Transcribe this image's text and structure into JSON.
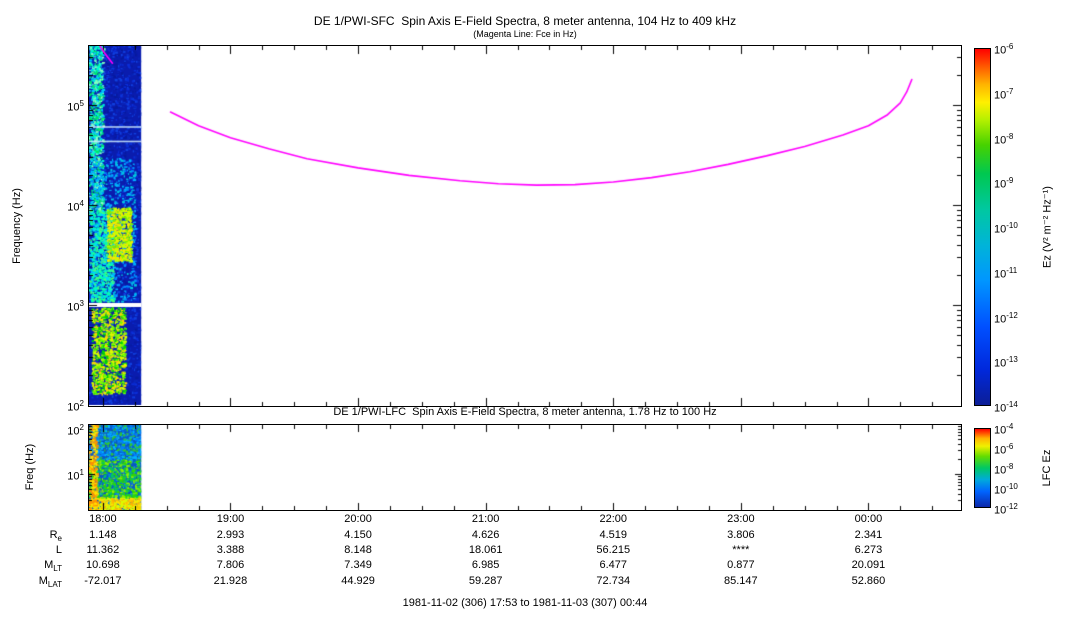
{
  "footer": "1981-11-02 (306) 17:53 to 1981-11-03 (307) 00:44",
  "ephemeris": {
    "rows": [
      {
        "base": "R",
        "sub": "e",
        "values": [
          "1.148",
          "2.993",
          "4.150",
          "4.626",
          "4.519",
          "3.806",
          "2.341"
        ]
      },
      {
        "base": "L",
        "sub": "",
        "values": [
          "11.362",
          "3.388",
          "8.148",
          "18.061",
          "56.215",
          "****",
          "6.273"
        ]
      },
      {
        "base": "M",
        "sub": "LT",
        "values": [
          "10.698",
          "7.806",
          "7.349",
          "6.985",
          "6.477",
          "0.877",
          "20.091"
        ]
      },
      {
        "base": "M",
        "sub": "LAT",
        "values": [
          "-72.017",
          "21.928",
          "44.929",
          "59.287",
          "72.734",
          "85.147",
          "52.860"
        ]
      }
    ]
  },
  "chart_data": [
    {
      "type": "heatmap",
      "instrument": "SFC",
      "title": "DE 1/PWI-SFC  Spin Axis E-Field Spectra, 8 meter antenna, 104 Hz to 409 kHz",
      "subtitle": "(Magenta Line: Fce in Hz)",
      "ylabel": "Frequency (Hz)",
      "yscale": "log",
      "ylim_hz": [
        104,
        409000
      ],
      "yticks": [
        {
          "hz": 100000,
          "base": "10",
          "exp": "5"
        },
        {
          "hz": 10000,
          "base": "10",
          "exp": "4"
        },
        {
          "hz": 1000,
          "base": "10",
          "exp": "3"
        },
        {
          "hz": 100,
          "base": "10",
          "exp": "2"
        }
      ],
      "time_range_hours": [
        17.8833,
        24.7333
      ],
      "xticks": [
        {
          "hour": 18,
          "label": "18:00"
        },
        {
          "hour": 19,
          "label": "19:00"
        },
        {
          "hour": 20,
          "label": "20:00"
        },
        {
          "hour": 21,
          "label": "21:00"
        },
        {
          "hour": 22,
          "label": "22:00"
        },
        {
          "hour": 23,
          "label": "23:00"
        },
        {
          "hour": 24,
          "label": "00:00"
        }
      ],
      "colorbar": {
        "label": "Ez (V² m⁻² Hz⁻¹)",
        "scale": "log",
        "range": [
          1e-14,
          1e-06
        ],
        "tick_base": "10",
        "tick_exps": [
          "-6",
          "-7",
          "-8",
          "-9",
          "-10",
          "-11",
          "-12",
          "-13",
          "-14"
        ],
        "stops": [
          [
            0,
            "#ff0000"
          ],
          [
            0.05,
            "#ff5a00"
          ],
          [
            0.1,
            "#ffb400"
          ],
          [
            0.15,
            "#fff000"
          ],
          [
            0.2,
            "#b4f000"
          ],
          [
            0.27,
            "#46d200"
          ],
          [
            0.35,
            "#00c850"
          ],
          [
            0.45,
            "#00c8a0"
          ],
          [
            0.55,
            "#00b4d8"
          ],
          [
            0.65,
            "#0096ff"
          ],
          [
            0.78,
            "#0050ff"
          ],
          [
            0.9,
            "#0028dc"
          ],
          [
            1,
            "#0c1e96"
          ]
        ]
      },
      "spectrogram": {
        "seed": 7,
        "time_extent_hours": [
          17.8833,
          18.3
        ],
        "freq_extent_hz": [
          100,
          409000
        ],
        "base_color": "#0a1cae",
        "features": [
          {
            "name": "noise-speckle",
            "t": [
              17.8833,
              18.3
            ],
            "f": [
              100,
              409000
            ],
            "colors": [
              "#0b2ed8",
              "#0a24b8",
              "#071a9e",
              "#1040e0"
            ],
            "density": 2600
          },
          {
            "name": "upper-bright-column",
            "t": [
              17.89,
              18.0
            ],
            "f": [
              8000,
              400000
            ],
            "colors": [
              "#00e868",
              "#00ffd0",
              "#8cffc0",
              "#00c8ff"
            ],
            "density": 900
          },
          {
            "name": "mid-cyan-wash",
            "t": [
              17.9,
              18.25
            ],
            "f": [
              1100,
              30000
            ],
            "colors": [
              "#0090ff",
              "#00c8e0",
              "#00b4ff"
            ],
            "density": 700
          },
          {
            "name": "cyan-column",
            "t": [
              17.89,
              18.08
            ],
            "f": [
              1100,
              9000
            ],
            "colors": [
              "#00d8ff",
              "#00ffb4",
              "#40ff80"
            ],
            "density": 700
          },
          {
            "name": "yellow-green-blob",
            "t": [
              18.03,
              18.22
            ],
            "f": [
              2800,
              9500
            ],
            "colors": [
              "#c8ff00",
              "#7cf000",
              "#ffe400"
            ],
            "density": 650
          },
          {
            "name": "low-freq-intense",
            "t": [
              17.91,
              18.17
            ],
            "f": [
              130,
              950
            ],
            "colors": [
              "#00d800",
              "#70ff00",
              "#d8ff00",
              "#ffd800"
            ],
            "density": 1100
          }
        ],
        "white_lines_hz": [
          1000
        ],
        "light_lines_hz": [
          43000,
          60000
        ]
      },
      "fce_line": {
        "color": "#ff00ff",
        "legend": "Fce in Hz",
        "segments": [
          [
            [
              17.955,
              430000
            ],
            [
              18.01,
              335000
            ],
            [
              18.075,
              262000
            ]
          ],
          [
            [
              18.53,
              85000
            ],
            [
              18.75,
              62000
            ],
            [
              19.0,
              47000
            ],
            [
              19.3,
              36500
            ],
            [
              19.6,
              29000
            ],
            [
              20.0,
              23500
            ],
            [
              20.4,
              19800
            ],
            [
              20.8,
              17500
            ],
            [
              21.1,
              16300
            ],
            [
              21.4,
              15800
            ],
            [
              21.7,
              16000
            ],
            [
              22.0,
              17000
            ],
            [
              22.3,
              18800
            ],
            [
              22.6,
              21500
            ],
            [
              22.9,
              25500
            ],
            [
              23.2,
              31000
            ],
            [
              23.5,
              38500
            ],
            [
              23.8,
              50000
            ],
            [
              24.0,
              62000
            ],
            [
              24.15,
              80000
            ],
            [
              24.25,
              105000
            ],
            [
              24.3,
              135000
            ],
            [
              24.34,
              180000
            ]
          ]
        ]
      }
    },
    {
      "type": "heatmap",
      "instrument": "LFC",
      "title": "DE 1/PWI-LFC  Spin Axis E-Field Spectra, 8 meter antenna, 1.78 Hz to 100 Hz",
      "ylabel": "Freq (Hz)",
      "yscale": "log",
      "ylim_hz": [
        1.78,
        100
      ],
      "yticks": [
        {
          "hz": 100,
          "base": "10",
          "exp": "2"
        },
        {
          "hz": 10,
          "base": "10",
          "exp": "1"
        }
      ],
      "colorbar": {
        "label": "LFC Ez",
        "scale": "log",
        "range": [
          1e-12,
          0.0001
        ],
        "tick_base": "10",
        "tick_exps": [
          "-4",
          "-6",
          "-8",
          "-10",
          "-12"
        ],
        "stops": [
          [
            0,
            "#ff0000"
          ],
          [
            0.12,
            "#ffb400"
          ],
          [
            0.22,
            "#f0f000"
          ],
          [
            0.35,
            "#64dc00"
          ],
          [
            0.5,
            "#00c864"
          ],
          [
            0.65,
            "#00aadc"
          ],
          [
            0.8,
            "#0064ff"
          ],
          [
            1,
            "#0c28aa"
          ]
        ]
      },
      "spectrogram": {
        "seed": 13,
        "time_extent_hours": [
          17.8833,
          18.3
        ],
        "freq_extent_hz": [
          1.78,
          100
        ],
        "base_color": "#0a58c8",
        "features": [
          {
            "name": "noise-speckle",
            "t": [
              17.8833,
              18.3
            ],
            "f": [
              1.78,
              100
            ],
            "colors": [
              "#0a6ad8",
              "#0a50b4",
              "#1090e0",
              "#20b4b4"
            ],
            "density": 700
          },
          {
            "name": "bottom-yellow-band",
            "t": [
              17.8833,
              18.3
            ],
            "f": [
              1.78,
              3.5
            ],
            "colors": [
              "#ffe400",
              "#ffb400",
              "#d8ff00"
            ],
            "density": 520
          },
          {
            "name": "mid-green-band",
            "t": [
              17.8833,
              18.3
            ],
            "f": [
              3.5,
              20
            ],
            "colors": [
              "#30d800",
              "#90f000",
              "#00c864"
            ],
            "density": 620
          },
          {
            "name": "upper-cyan-band",
            "t": [
              17.8833,
              18.3
            ],
            "f": [
              20,
              100
            ],
            "colors": [
              "#00b4ff",
              "#30c830",
              "#0080ff"
            ],
            "density": 430
          },
          {
            "name": "left-yellow-streak",
            "t": [
              17.89,
              17.95
            ],
            "f": [
              2,
              100
            ],
            "colors": [
              "#ffe400",
              "#ff9000"
            ],
            "density": 260
          }
        ],
        "white_lines_hz": [],
        "light_lines_hz": []
      }
    }
  ]
}
